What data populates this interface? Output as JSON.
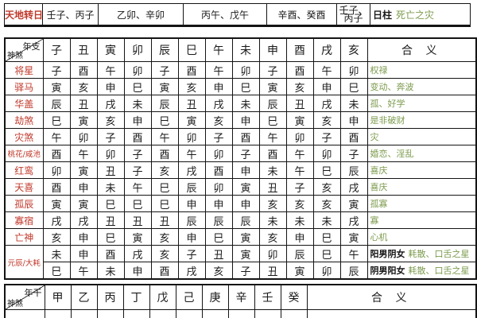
{
  "colors": {
    "label_red": "#c0392b",
    "meaning_green": "#7d9b4e"
  },
  "top_strip": {
    "label": "天地转日",
    "cells": [
      "壬子、丙子",
      "乙卯、辛卯",
      "丙午、戊午",
      "辛酉、癸酉"
    ],
    "stacked_cell": [
      "壬子、",
      "丙子"
    ],
    "day_pillar_label": "日柱",
    "day_pillar_meaning": "死亡之灾"
  },
  "branch_table": {
    "corner_top": "年支",
    "corner_bottom": "神煞",
    "columns": [
      "子",
      "丑",
      "寅",
      "卯",
      "辰",
      "巳",
      "午",
      "未",
      "申",
      "酉",
      "戌",
      "亥"
    ],
    "meaning_header": "合 义",
    "rows": [
      {
        "label": "将星",
        "values": [
          "子",
          "酉",
          "午",
          "卯",
          "子",
          "酉",
          "午",
          "卯",
          "子",
          "酉",
          "午",
          "卯"
        ],
        "meaning": "权禄"
      },
      {
        "label": "驿马",
        "values": [
          "寅",
          "亥",
          "申",
          "巳",
          "寅",
          "亥",
          "申",
          "巳",
          "寅",
          "亥",
          "申",
          "巳"
        ],
        "meaning": "变动、奔波"
      },
      {
        "label": "华盖",
        "values": [
          "辰",
          "丑",
          "戌",
          "未",
          "辰",
          "丑",
          "戌",
          "未",
          "辰",
          "丑",
          "戌",
          "未"
        ],
        "meaning": "孤、好学"
      },
      {
        "label": "劫煞",
        "values": [
          "巳",
          "寅",
          "亥",
          "申",
          "巳",
          "寅",
          "亥",
          "申",
          "巳",
          "寅",
          "亥",
          "申"
        ],
        "meaning": "是非破财"
      },
      {
        "label": "灾煞",
        "values": [
          "午",
          "卯",
          "子",
          "酉",
          "午",
          "卯",
          "子",
          "酉",
          "午",
          "卯",
          "子",
          "酉"
        ],
        "meaning": "灾"
      },
      {
        "label": "桃花/咸池",
        "values": [
          "酉",
          "午",
          "卯",
          "子",
          "酉",
          "午",
          "卯",
          "子",
          "酉",
          "午",
          "卯",
          "子"
        ],
        "meaning": "婚恋、淫乱"
      },
      {
        "label": "红鸾",
        "values": [
          "卯",
          "寅",
          "丑",
          "子",
          "亥",
          "戌",
          "酉",
          "申",
          "未",
          "午",
          "巳",
          "辰"
        ],
        "meaning": "喜庆"
      },
      {
        "label": "天喜",
        "values": [
          "酉",
          "申",
          "未",
          "午",
          "巳",
          "辰",
          "卯",
          "寅",
          "丑",
          "子",
          "亥",
          "戌"
        ],
        "meaning": "喜庆"
      },
      {
        "label": "孤辰",
        "values": [
          "寅",
          "寅",
          "巳",
          "巳",
          "巳",
          "申",
          "申",
          "申",
          "亥",
          "亥",
          "亥",
          "寅"
        ],
        "meaning": "孤寡"
      },
      {
        "label": "寡宿",
        "values": [
          "戌",
          "戌",
          "丑",
          "丑",
          "丑",
          "辰",
          "辰",
          "辰",
          "未",
          "未",
          "未",
          "戌"
        ],
        "meaning": "寡"
      },
      {
        "label": "亡神",
        "values": [
          "亥",
          "申",
          "巳",
          "寅",
          "亥",
          "申",
          "巳",
          "寅",
          "亥",
          "申",
          "巳",
          "寅"
        ],
        "meaning": "心机"
      }
    ],
    "double_row": {
      "label": "元辰/大耗",
      "sub_rows": [
        {
          "values": [
            "未",
            "申",
            "酉",
            "戌",
            "亥",
            "子",
            "丑",
            "寅",
            "卯",
            "辰",
            "巳",
            "午"
          ],
          "gender_label": "阳男阴女",
          "meaning": "耗散、口舌之星"
        },
        {
          "values": [
            "巳",
            "午",
            "未",
            "申",
            "酉",
            "戌",
            "亥",
            "子",
            "丑",
            "寅",
            "卯",
            "辰"
          ],
          "gender_label": "阴男阳女",
          "meaning": "耗散、口舌之星"
        }
      ]
    }
  },
  "stem_table": {
    "corner_top": "年干",
    "corner_bottom": "神煞",
    "columns": [
      "甲",
      "乙",
      "丙",
      "丁",
      "戊",
      "己",
      "庚",
      "辛",
      "壬",
      "癸"
    ],
    "meaning_header": "合 义"
  }
}
